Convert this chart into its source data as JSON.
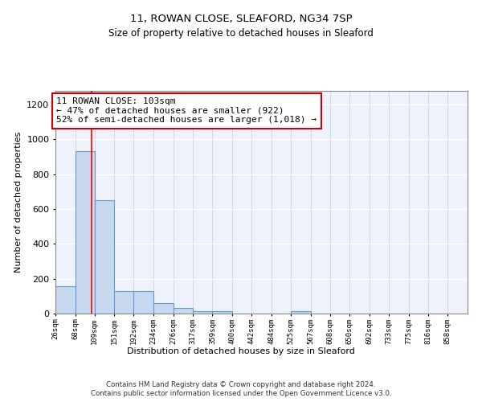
{
  "title1": "11, ROWAN CLOSE, SLEAFORD, NG34 7SP",
  "title2": "Size of property relative to detached houses in Sleaford",
  "xlabel": "Distribution of detached houses by size in Sleaford",
  "ylabel": "Number of detached properties",
  "bin_edges": [
    26,
    68,
    109,
    151,
    192,
    234,
    276,
    317,
    359,
    400,
    442,
    484,
    525,
    567,
    608,
    650,
    692,
    733,
    775,
    816,
    858
  ],
  "bar_heights": [
    155,
    930,
    650,
    130,
    130,
    60,
    30,
    12,
    12,
    0,
    0,
    0,
    12,
    0,
    0,
    0,
    0,
    0,
    0,
    0
  ],
  "bar_color": "#c8d8ee",
  "bar_edge_color": "#6699cc",
  "red_line_x": 103,
  "ylim": [
    0,
    1280
  ],
  "yticks": [
    0,
    200,
    400,
    600,
    800,
    1000,
    1200
  ],
  "annotation_text": "11 ROWAN CLOSE: 103sqm\n← 47% of detached houses are smaller (922)\n52% of semi-detached houses are larger (1,018) →",
  "annotation_box_color": "#ffffff",
  "annotation_box_edge": "#cc0000",
  "footer1": "Contains HM Land Registry data © Crown copyright and database right 2024.",
  "footer2": "Contains public sector information licensed under the Open Government Licence v3.0.",
  "bg_color": "#eef2fb",
  "grid_color": "#d8dde8",
  "tick_labels": [
    "26sqm",
    "68sqm",
    "109sqm",
    "151sqm",
    "192sqm",
    "234sqm",
    "276sqm",
    "317sqm",
    "359sqm",
    "400sqm",
    "442sqm",
    "484sqm",
    "525sqm",
    "567sqm",
    "608sqm",
    "650sqm",
    "692sqm",
    "733sqm",
    "775sqm",
    "816sqm",
    "858sqm"
  ]
}
